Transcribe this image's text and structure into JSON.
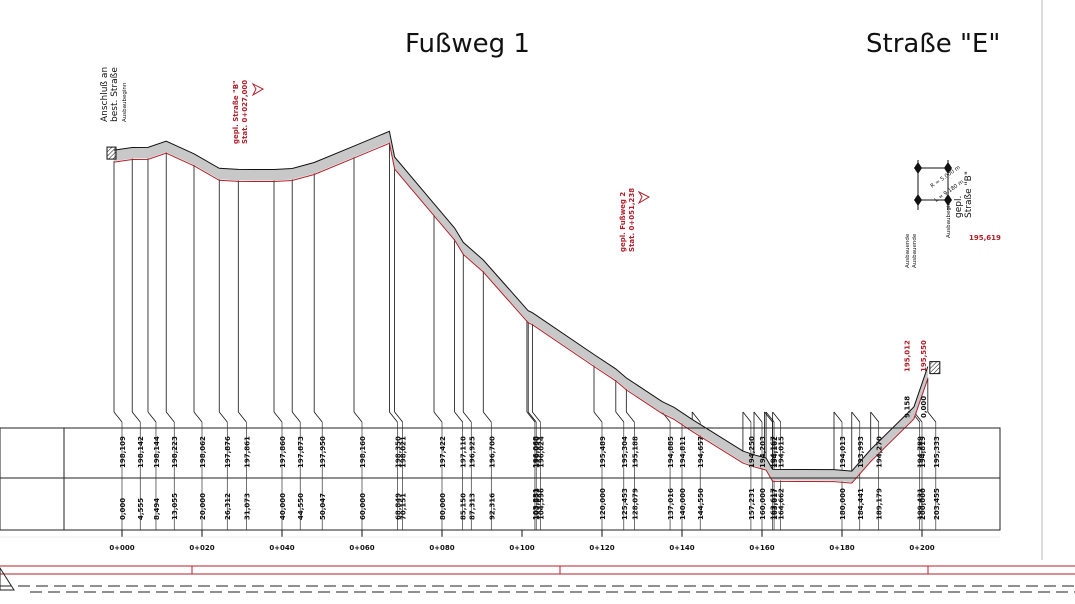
{
  "titles": {
    "main": "Fußweg 1",
    "right": "Straße \"E\""
  },
  "labels": {
    "start_line1": "Anschluß an",
    "start_line2": "best. Straße",
    "start_sub": "Ausbaubeginn",
    "road_b_line1": "gepl. Straße \"B\"",
    "road_b_line2": "Stat. 0+027,000",
    "fussweg2_line1": "gepl. Fußweg 2",
    "fussweg2_line2": "Stat. 0+051,238",
    "end_line1": "gepl.",
    "end_line2": "Straße \"B\"",
    "end_sub": "Ausbaubeginn",
    "ausbauende1": "Ausbauende",
    "ausbauende2": "Ausbauende",
    "curve_r": "R = 5.000 m",
    "curve_l": "L = 9.180 m",
    "end_value": "195,619"
  },
  "colors": {
    "line": "#111111",
    "red": "#b0202a",
    "fill": "#c8c8c8",
    "grid": "#222222"
  },
  "chart_data": {
    "type": "line",
    "x_stations": [
      0.0,
      4.555,
      8.494,
      13.055,
      20.0,
      26.312,
      31.073,
      40.0,
      44.55,
      50.047,
      60.0,
      68.849,
      70.151,
      80.0,
      85.15,
      87.313,
      92.316,
      103.231,
      103.553,
      104.596,
      120.0,
      125.453,
      128.079,
      137.016,
      140.0,
      144.55,
      157.231,
      160.0,
      162.617,
      163.017,
      164.662,
      180.0,
      184.441,
      189.179,
      199.431,
      200.0,
      203.455
    ],
    "station_labels": [
      "0,000",
      "4,555",
      "8,494",
      "13,055",
      "20,000",
      "26,312",
      "31,073",
      "40,000",
      "44,550",
      "50,047",
      "60,000",
      "68,849",
      "70,151",
      "80,000",
      "85,150",
      "87,313",
      "92,316",
      "103,231",
      "103,553",
      "104,596",
      "120,000",
      "125,453",
      "128,079",
      "137,016",
      "140,000",
      "144,550",
      "157,231",
      "160,000",
      "162,617",
      "163,017",
      "164,662",
      "180,000",
      "184,441",
      "189,179",
      "199,431",
      "200,000",
      "203,455"
    ],
    "elevations": [
      198.109,
      198.142,
      198.144,
      198.223,
      198.062,
      197.876,
      197.861,
      197.86,
      197.873,
      197.95,
      198.16,
      198.35,
      198.021,
      197.422,
      197.11,
      196.925,
      196.7,
      196.068,
      196.05,
      196.024,
      195.489,
      195.304,
      195.188,
      194.885,
      194.811,
      194.657,
      194.25,
      194.203,
      194.167,
      194.162,
      194.015,
      194.013,
      193.993,
      194.27,
      194.789,
      194.819,
      195.333
    ],
    "elevation_labels": [
      "198,109",
      "198,142",
      "198,144",
      "198,223",
      "198,062",
      "197,876",
      "197,861",
      "197,860",
      "197,873",
      "197,950",
      "198,160",
      "198,350",
      "198,021",
      "197,422",
      "197,110",
      "196,925",
      "196,700",
      "196,068",
      "196,050",
      "196,024",
      "195,489",
      "195,304",
      "195,188",
      "194,885",
      "194,811",
      "194,657",
      "194,250",
      "194,203",
      "194,167",
      "194,162",
      "194,015",
      "194,013",
      "193,993",
      "194,270",
      "194,789",
      "194,819",
      "195,333"
    ],
    "major_ticks": [
      "0+000",
      "0+020",
      "0+040",
      "0+060",
      "0+080",
      "0+100",
      "0+120",
      "0+140",
      "0+160",
      "0+180",
      "0+200"
    ],
    "red_marks": [
      {
        "station": 199.431,
        "label": "195,012"
      },
      {
        "station": 203.455,
        "label": "195,550"
      }
    ],
    "mid_values": [
      {
        "station": 199.431,
        "label": "9,158"
      },
      {
        "station": 203.455,
        "label": "0,000"
      }
    ]
  }
}
